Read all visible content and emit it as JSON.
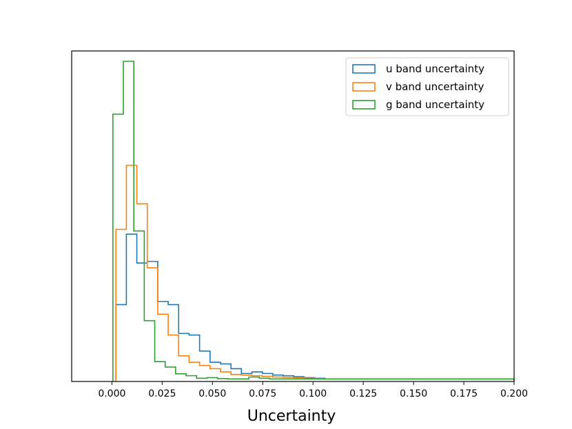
{
  "chart_data": {
    "type": "histogram",
    "title": "",
    "xlabel": "Uncertainty",
    "ylabel": "",
    "xlim": [
      -0.02,
      0.2
    ],
    "ylim": [
      0,
      1.0
    ],
    "y_ticks_shown": false,
    "grid": false,
    "legend_position": "top-right",
    "bin_width": 0.0052,
    "x_ticks": [
      0.0,
      0.025,
      0.05,
      0.075,
      0.1,
      0.125,
      0.15,
      0.175,
      0.2
    ],
    "x_tick_labels": [
      "0.000",
      "0.025",
      "0.050",
      "0.075",
      "0.100",
      "0.125",
      "0.150",
      "0.175",
      "0.200"
    ],
    "series": [
      {
        "name": "u band uncertainty",
        "color": "#1f77b4",
        "edges": [
          0.002,
          0.0072,
          0.0124,
          0.0176,
          0.0228,
          0.028,
          0.0332,
          0.0384,
          0.0436,
          0.0488,
          0.054,
          0.0592,
          0.0644,
          0.0696,
          0.0748,
          0.08,
          0.0852,
          0.0904,
          0.0956,
          0.1008,
          0.106,
          0.2
        ],
        "values": [
          0.24,
          0.46,
          0.37,
          0.375,
          0.25,
          0.24,
          0.15,
          0.145,
          0.095,
          0.06,
          0.055,
          0.04,
          0.025,
          0.03,
          0.025,
          0.02,
          0.018,
          0.015,
          0.012,
          0.01,
          0.008
        ]
      },
      {
        "name": "v band uncertainty",
        "color": "#ff7f0e",
        "edges": [
          0.002,
          0.0072,
          0.0124,
          0.0176,
          0.0228,
          0.028,
          0.0332,
          0.0384,
          0.0436,
          0.0488,
          0.054,
          0.0592,
          0.0644,
          0.0696,
          0.0748,
          0.08,
          0.0852,
          0.0904,
          0.0956,
          0.1008,
          0.106,
          0.2
        ],
        "values": [
          0.475,
          0.675,
          0.555,
          0.355,
          0.21,
          0.145,
          0.08,
          0.06,
          0.05,
          0.04,
          0.03,
          0.022,
          0.02,
          0.018,
          0.016,
          0.014,
          0.013,
          0.012,
          0.01,
          0.009,
          0.008
        ]
      },
      {
        "name": "g band uncertainty",
        "color": "#2ca02c",
        "edges": [
          0.0005,
          0.0057,
          0.0109,
          0.0161,
          0.0213,
          0.0265,
          0.0317,
          0.0369,
          0.0421,
          0.0473,
          0.0525,
          0.0577,
          0.0629,
          0.0681,
          0.0733,
          0.0785,
          0.2
        ],
        "values": [
          0.835,
          1.0,
          0.47,
          0.19,
          0.062,
          0.045,
          0.024,
          0.018,
          0.01,
          0.012,
          0.009,
          0.008,
          0.008,
          0.014,
          0.01,
          0.008
        ]
      }
    ]
  }
}
